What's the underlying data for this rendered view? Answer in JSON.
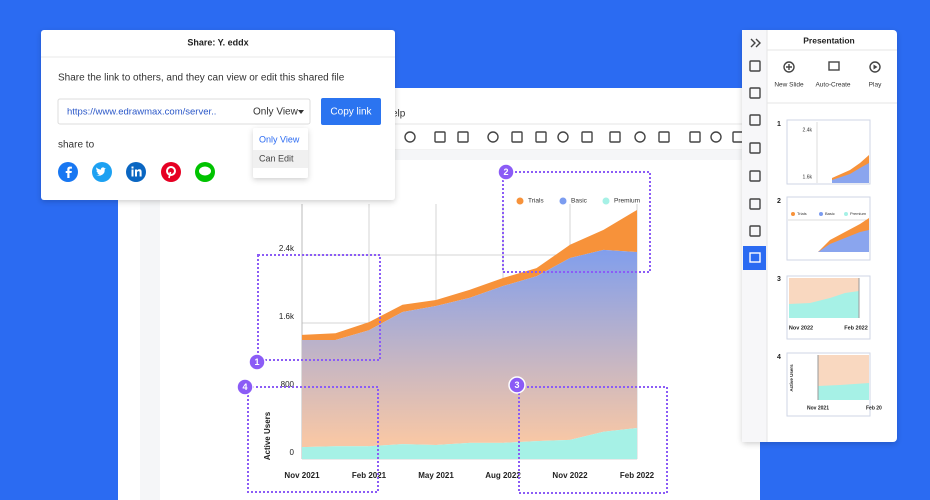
{
  "share_dialog": {
    "title": "Share: Y. eddx",
    "description": "Share the link to others, and they can view or edit this shared file",
    "link": "https://www.edrawmax.com/server..",
    "permission": "Only View",
    "copy_button": "Copy link",
    "dropdown_options": [
      "Only View",
      "Can Edit"
    ],
    "share_to": "share to"
  },
  "menu": {
    "help": "elp"
  },
  "presentation": {
    "title": "Presentation",
    "actions": [
      "New Slide",
      "Auto-Create",
      "Play"
    ],
    "slides": [
      {
        "number": "1",
        "labels": [
          "2.4k",
          "1.6k"
        ]
      },
      {
        "number": "2",
        "labels": [
          "Trials",
          "Basic",
          "Premium"
        ]
      },
      {
        "number": "3",
        "labels": [
          "Nov 2022",
          "Feb 2022"
        ]
      },
      {
        "number": "4",
        "labels": [
          "Active Users",
          "Nov 2021",
          "Feb 20"
        ]
      }
    ]
  },
  "chart_data": {
    "type": "area",
    "ylabel": "Active Users",
    "categories": [
      "Nov 2021",
      null,
      "Feb 2021",
      null,
      "May 2021",
      null,
      "Aug 2022",
      null,
      "Nov 2022",
      null,
      "Feb 2022"
    ],
    "ylim": [
      0,
      3000
    ],
    "yticks": [
      0,
      800,
      {
        "value": 1600,
        "label": "1.6k"
      },
      {
        "value": 2400,
        "label": "2.4k"
      }
    ],
    "stacked": true,
    "series": [
      {
        "name": "Trials",
        "color": "#f7923a",
        "values": [
          60,
          80,
          95,
          85,
          70,
          95,
          95,
          95,
          155,
          235,
          495
        ]
      },
      {
        "name": "Basic",
        "color": "#7b9cf0",
        "values": [
          1260,
          1250,
          1365,
          1555,
          1635,
          1705,
          1845,
          1940,
          2140,
          2140,
          2070
        ]
      },
      {
        "name": "Premium",
        "color": "#a6f1e6",
        "values": [
          140,
          150,
          150,
          175,
          165,
          190,
          190,
          210,
          225,
          320,
          365
        ]
      }
    ],
    "callouts": [
      "1",
      "2",
      "3",
      "4"
    ]
  }
}
